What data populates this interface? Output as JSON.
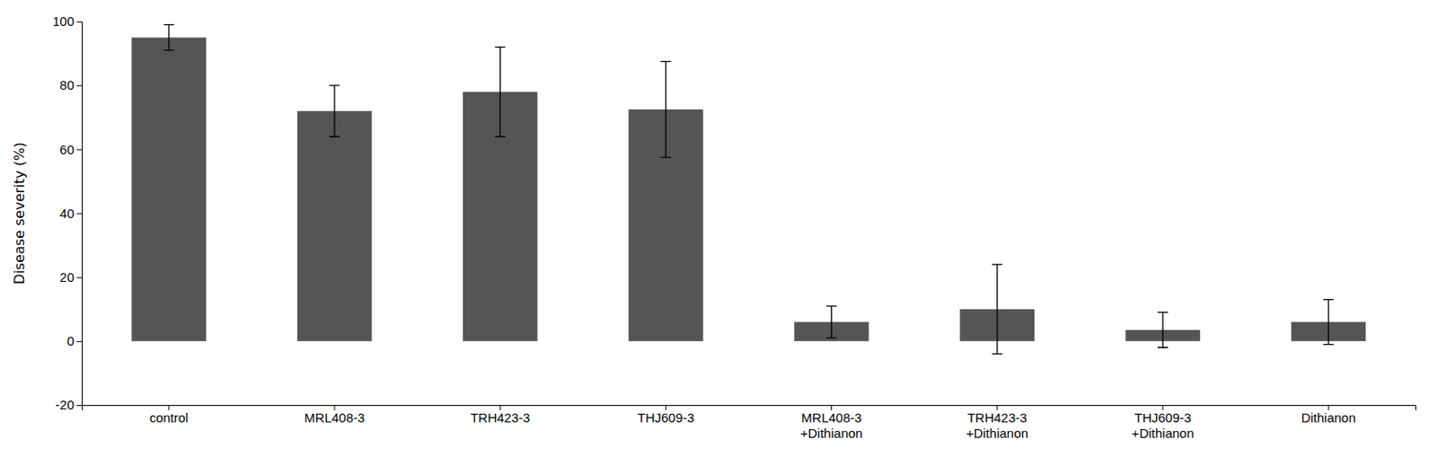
{
  "chart_data": {
    "type": "bar",
    "categories": [
      "control",
      "MRL408-3",
      "TRH423-3",
      "THJ609-3",
      "MRL408-3\n+Dithianon",
      "TRH423-3\n+Dithianon",
      "THJ609-3\n+Dithianon",
      "Dithianon"
    ],
    "values": [
      95.0,
      72.0,
      78.0,
      72.5,
      6.0,
      10.0,
      3.5,
      6.0
    ],
    "errors": [
      4.0,
      8.0,
      14.0,
      15.0,
      5.0,
      14.0,
      5.5,
      7.0
    ],
    "color": "#555555",
    "ylabel": "Disease severity (%)",
    "ylim": [
      -20,
      100
    ],
    "yticks": [
      -20,
      0,
      20,
      40,
      60,
      80,
      100
    ],
    "grid": false
  }
}
